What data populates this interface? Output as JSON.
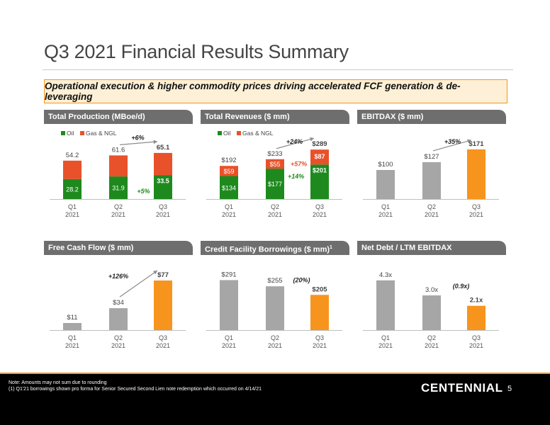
{
  "title": "Q3 2021 Financial Results Summary",
  "callout": "Operational execution & higher commodity prices driving accelerated FCF generation & de-leveraging",
  "colors": {
    "oil": "#1e8a1e",
    "gas": "#e8512a",
    "gray": "#a6a6a6",
    "orange": "#f7941d",
    "header_bg": "#6e6e6e",
    "accent": "#f7941d"
  },
  "categories": [
    {
      "q": "Q1",
      "y": "2021"
    },
    {
      "q": "Q2",
      "y": "2021"
    },
    {
      "q": "Q3",
      "y": "2021"
    }
  ],
  "chart_data": [
    {
      "title": "Total Production (MBoe/d)",
      "type": "bar",
      "stacked": true,
      "categories": [
        "Q1 2021",
        "Q2 2021",
        "Q3 2021"
      ],
      "legend": [
        "Oil",
        "Gas & NGL"
      ],
      "series": [
        {
          "name": "Oil",
          "values": [
            28.2,
            31.9,
            33.5
          ],
          "labels": [
            "28.2",
            "31.9",
            "33.5"
          ]
        },
        {
          "name": "Gas & NGL",
          "values": [
            26.0,
            29.7,
            31.6
          ]
        }
      ],
      "totals": [
        54.2,
        61.6,
        65.1
      ],
      "total_labels": [
        "54.2",
        "61.6",
        "65.1"
      ],
      "annotations": {
        "total_growth": "+6%",
        "oil_growth": "+5%"
      },
      "ylim": [
        0,
        80
      ]
    },
    {
      "title": "Total Revenues ($ mm)",
      "type": "bar",
      "stacked": true,
      "categories": [
        "Q1 2021",
        "Q2 2021",
        "Q3 2021"
      ],
      "legend": [
        "Oil",
        "Gas & NGL"
      ],
      "series": [
        {
          "name": "Oil",
          "values": [
            134,
            177,
            201
          ],
          "labels": [
            "$134",
            "$177",
            "$201"
          ]
        },
        {
          "name": "Gas & NGL",
          "values": [
            59,
            55,
            87
          ],
          "labels": [
            "$59",
            "$55",
            "$87"
          ]
        }
      ],
      "totals": [
        192,
        233,
        289
      ],
      "total_labels": [
        "$192",
        "$233",
        "$289"
      ],
      "annotations": {
        "total_growth": "+24%",
        "gas_growth": "+57%",
        "oil_growth": "+14%"
      },
      "ylim": [
        0,
        330
      ]
    },
    {
      "title": "EBITDAX ($ mm)",
      "type": "bar",
      "categories": [
        "Q1 2021",
        "Q2 2021",
        "Q3 2021"
      ],
      "values": [
        100,
        127,
        171
      ],
      "labels": [
        "$100",
        "$127",
        "$171"
      ],
      "annotations": {
        "growth": "+35%"
      },
      "ylim": [
        0,
        195
      ]
    },
    {
      "title": "Free Cash Flow ($ mm)",
      "type": "bar",
      "categories": [
        "Q1 2021",
        "Q2 2021",
        "Q3 2021"
      ],
      "values": [
        11,
        34,
        77
      ],
      "labels": [
        "$11",
        "$34",
        "$77"
      ],
      "annotations": {
        "growth": "+126%"
      },
      "ylim": [
        0,
        88
      ]
    },
    {
      "title": "Credit Facility Borrowings ($ mm)",
      "title_sup": "1",
      "type": "bar",
      "categories": [
        "Q1 2021",
        "Q2 2021",
        "Q3 2021"
      ],
      "values": [
        291,
        255,
        205
      ],
      "labels": [
        "$291",
        "$255",
        "$205"
      ],
      "annotations": {
        "growth": "(20%)"
      },
      "ylim": [
        0,
        330
      ]
    },
    {
      "title": "Net Debt / LTM EBITDAX",
      "type": "bar",
      "categories": [
        "Q1 2021",
        "Q2 2021",
        "Q3 2021"
      ],
      "values": [
        4.3,
        3.0,
        2.1
      ],
      "labels": [
        "4.3x",
        "3.0x",
        "2.1x"
      ],
      "annotations": {
        "growth": "(0.9x)"
      },
      "ylim": [
        0,
        4.9
      ]
    }
  ],
  "footer": {
    "note": "Note: Amounts may not sum due to rounding",
    "footnote": "(1)    Q1'21 borrowings shown pro forma for Senior Secured Second Lien note redemption which occurred on 4/14/21",
    "brand": "CENTENNIAL",
    "page": "5"
  }
}
